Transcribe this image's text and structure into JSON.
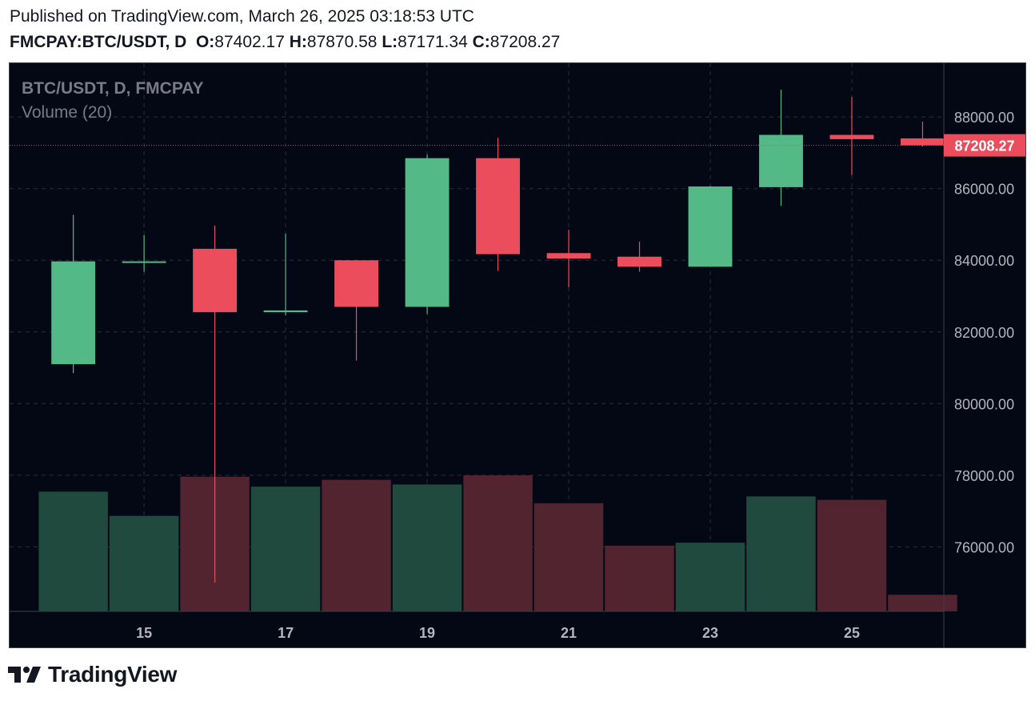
{
  "header": {
    "published": "Published on TradingView.com, March 26, 2025 03:18:53 UTC",
    "symbol": "FMCPAY:BTC/USDT, D",
    "o_label": "O:",
    "o_value": "87402.17",
    "h_label": "H:",
    "h_value": "87870.58",
    "l_label": "L:",
    "l_value": "87171.34",
    "c_label": "C:",
    "c_value": "87208.27"
  },
  "legend": {
    "series": "BTC/USDT, D, FMCPAY",
    "volume": "Volume (20)"
  },
  "brand": {
    "name": "TradingView"
  },
  "colors": {
    "background": "#040814",
    "up": "#53b987",
    "down": "#eb4d5c",
    "up_volume": "#1f4a3d",
    "down_volume": "#512430",
    "grid": "#2a2e39",
    "axis_text": "#b2b5be",
    "legend_text": "#787b86"
  },
  "chart_data": {
    "type": "candlestick",
    "title": "BTC/USDT, D, FMCPAY",
    "y_axis": {
      "ticks": [
        "88000.00",
        "86000.00",
        "84000.00",
        "82000.00",
        "80000.00",
        "78000.00",
        "76000.00"
      ],
      "range": [
        74200,
        89500
      ]
    },
    "x_axis": {
      "ticks": [
        "15",
        "17",
        "19",
        "21",
        "23",
        "25"
      ],
      "range": [
        13.1,
        26.3
      ]
    },
    "last_price_label": "87208.27",
    "candles": [
      {
        "day": 14,
        "open": 81100,
        "high": 85270,
        "low": 80850,
        "close": 83970
      },
      {
        "day": 15,
        "open": 83930,
        "high": 84700,
        "low": 83680,
        "close": 83970
      },
      {
        "day": 16,
        "open": 84320,
        "high": 84970,
        "low": 75000,
        "close": 82550
      },
      {
        "day": 17,
        "open": 82550,
        "high": 84740,
        "low": 82460,
        "close": 82600
      },
      {
        "day": 18,
        "open": 84000,
        "high": 84010,
        "low": 81200,
        "close": 82700
      },
      {
        "day": 19,
        "open": 82700,
        "high": 86950,
        "low": 82500,
        "close": 86850
      },
      {
        "day": 20,
        "open": 86850,
        "high": 87420,
        "low": 83700,
        "close": 84170
      },
      {
        "day": 21,
        "open": 84200,
        "high": 84850,
        "low": 83250,
        "close": 84050
      },
      {
        "day": 22,
        "open": 84100,
        "high": 84520,
        "low": 83680,
        "close": 83820
      },
      {
        "day": 23,
        "open": 83820,
        "high": 86070,
        "low": 83820,
        "close": 86060
      },
      {
        "day": 24,
        "open": 86040,
        "high": 88760,
        "low": 85520,
        "close": 87500
      },
      {
        "day": 25,
        "open": 87500,
        "high": 88560,
        "low": 86380,
        "close": 87380
      },
      {
        "day": 26,
        "open": 87402.17,
        "high": 87870.58,
        "low": 87171.34,
        "close": 87208.27
      }
    ],
    "volume": {
      "name": "Volume (20)",
      "relative_heights": [
        0.88,
        0.702,
        0.99,
        0.917,
        0.967,
        0.933,
        1.0,
        0.795,
        0.483,
        0.505,
        0.845,
        0.82,
        0.122
      ]
    }
  }
}
